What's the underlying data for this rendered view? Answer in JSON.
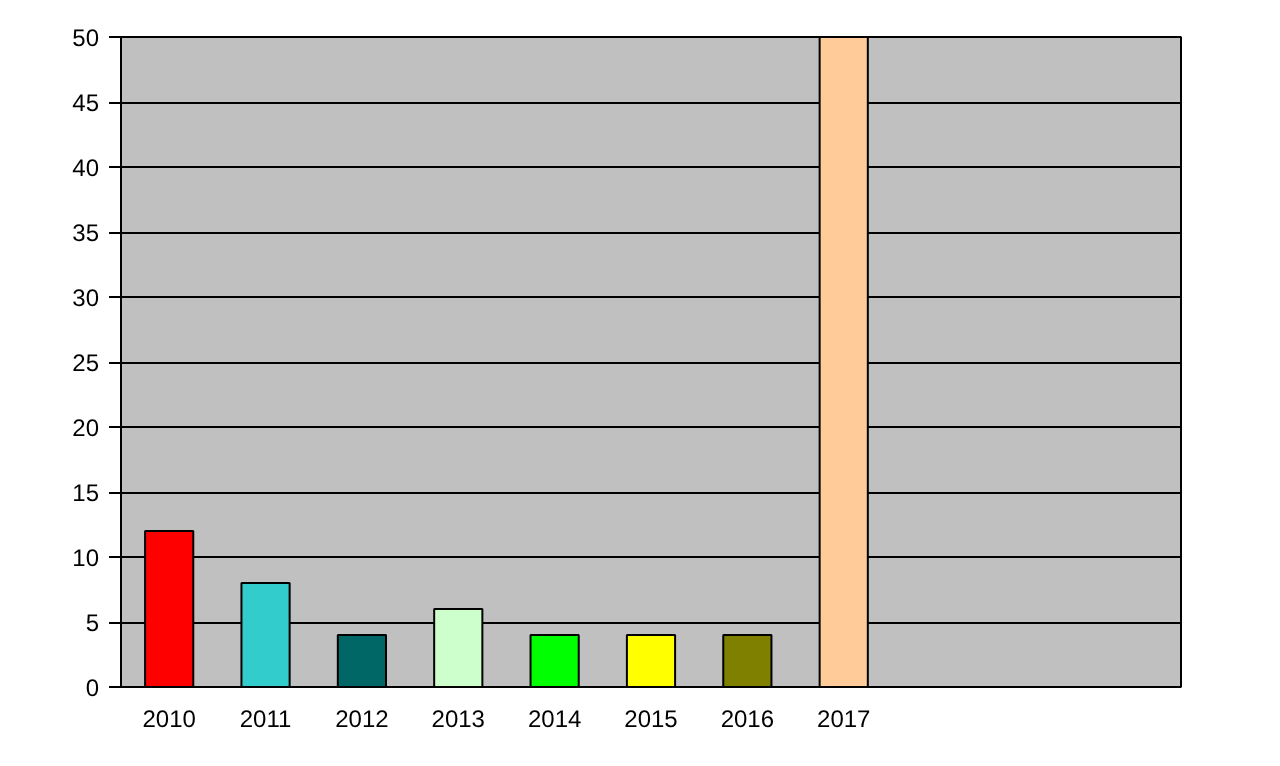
{
  "chart_data": {
    "type": "bar",
    "categories": [
      "2010",
      "2011",
      "2012",
      "2013",
      "2014",
      "2015",
      "2016",
      "2017",
      null,
      null,
      null
    ],
    "values": [
      12,
      8,
      4,
      6,
      4,
      4,
      4,
      50,
      null,
      null,
      null
    ],
    "colors": [
      "#ff0000",
      "#33cccc",
      "#006666",
      "#ccffcc",
      "#00ff00",
      "#ffff00",
      "#808000",
      "#ffcc99",
      null,
      null,
      null
    ],
    "ylim": [
      0,
      50
    ],
    "yticks": [
      0,
      5,
      10,
      15,
      20,
      25,
      30,
      35,
      40,
      45,
      50
    ],
    "grid": "y"
  }
}
